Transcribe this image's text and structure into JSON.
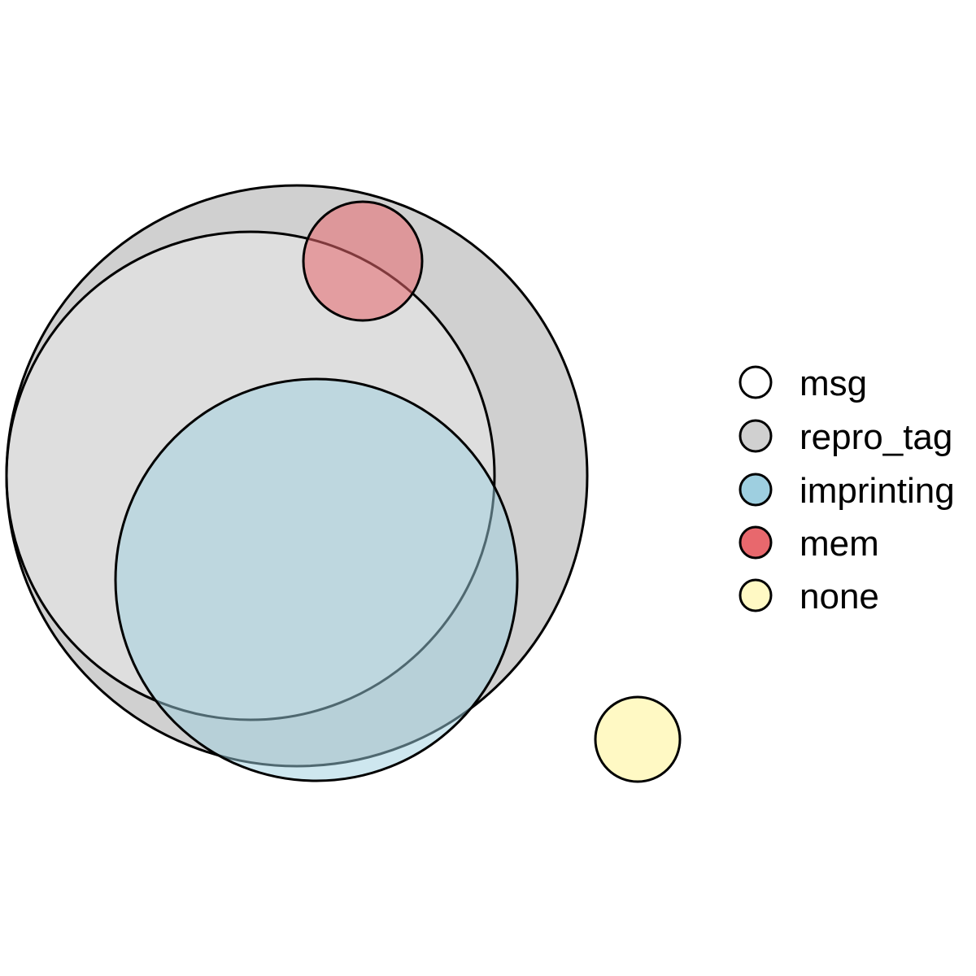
{
  "diagram": {
    "type": "euler",
    "stroke_color": "#000000",
    "sets": [
      {
        "key": "msg",
        "label": "msg",
        "fill": "#ffffff",
        "fill_opacity": 0.3
      },
      {
        "key": "repro_tag",
        "label": "repro_tag",
        "fill": "#d0d0d0",
        "fill_opacity": 1
      },
      {
        "key": "imprinting",
        "label": "imprinting",
        "fill": "#9ecfe0",
        "fill_opacity": 0.5
      },
      {
        "key": "mem",
        "label": "mem",
        "fill": "#e8686d",
        "fill_opacity": 0.55
      },
      {
        "key": "none",
        "label": "none",
        "fill": "#fff9c4",
        "fill_opacity": 1
      }
    ]
  }
}
